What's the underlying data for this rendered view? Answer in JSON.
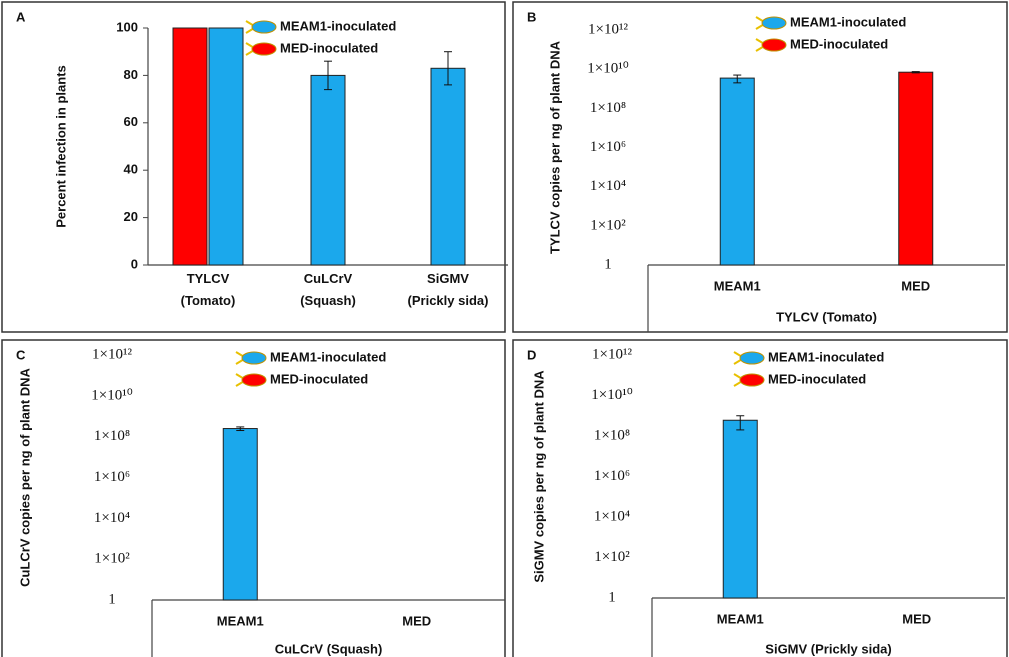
{
  "chart_data": [
    {
      "type": "bar",
      "panel": "A",
      "ylabel": "Percent infection in plants",
      "categories": [
        "TYLCV (Tomato)",
        "CuLCrV (Squash)",
        "SiGMV (Prickly sida)"
      ],
      "series": [
        {
          "name": "MEAM1-inoculated",
          "color": "#1ba8ec",
          "values": [
            100,
            80,
            83
          ],
          "errors": [
            0,
            6,
            7
          ]
        },
        {
          "name": "MED-inoculated",
          "color": "#ff0000",
          "values": [
            100,
            null,
            null
          ],
          "errors": [
            0,
            null,
            null
          ]
        }
      ],
      "ylim": [
        0,
        100
      ],
      "yticks": [
        0,
        20,
        40,
        60,
        80,
        100
      ],
      "log_scale": false,
      "legend": "top"
    },
    {
      "type": "bar",
      "panel": "B",
      "ylabel": "TYLCV copies per ng of plant DNA",
      "xlabel": "TYLCV (Tomato)",
      "categories": [
        "MEAM1",
        "MED"
      ],
      "series": [
        {
          "name": "MEAM1-inoculated",
          "color": "#1ba8ec",
          "values": [
            3500000000,
            null
          ],
          "errors": [
            1500000000,
            null
          ]
        },
        {
          "name": "MED-inoculated",
          "color": "#ff0000",
          "values": [
            null,
            7000000000
          ],
          "errors": [
            null,
            500000000
          ]
        }
      ],
      "ylim": [
        1,
        1000000000000
      ],
      "yticks": [
        1,
        {
          "value": 100,
          "label": "1×10²"
        },
        {
          "value": 10000,
          "label": "1×10⁴"
        },
        {
          "value": 1000000,
          "label": "1×10⁶"
        },
        {
          "value": 100000000,
          "label": "1×10⁸"
        },
        {
          "value": 10000000000,
          "label": "1×10¹⁰"
        },
        {
          "value": 1000000000000,
          "label": "1×10¹²"
        }
      ],
      "log_scale": true,
      "legend": "top"
    },
    {
      "type": "bar",
      "panel": "C",
      "ylabel": "CuLCrV copies per ng of plant DNA",
      "xlabel": "CuLCrV (Squash)",
      "categories": [
        "MEAM1",
        "MED"
      ],
      "series": [
        {
          "name": "MEAM1-inoculated",
          "color": "#1ba8ec",
          "values": [
            250000000,
            null
          ],
          "errors": [
            50000000,
            null
          ]
        },
        {
          "name": "MED-inoculated",
          "color": "#ff0000",
          "values": [
            null,
            null
          ],
          "errors": [
            null,
            null
          ]
        }
      ],
      "ylim": [
        1,
        1000000000000
      ],
      "yticks": [
        1,
        {
          "value": 100,
          "label": "1×10²"
        },
        {
          "value": 10000,
          "label": "1×10⁴"
        },
        {
          "value": 1000000,
          "label": "1×10⁶"
        },
        {
          "value": 100000000,
          "label": "1×10⁸"
        },
        {
          "value": 10000000000,
          "label": "1×10¹⁰"
        },
        {
          "value": 1000000000000,
          "label": "1×10¹²"
        }
      ],
      "log_scale": true,
      "legend": "top"
    },
    {
      "type": "bar",
      "panel": "D",
      "ylabel": "SiGMV copies per ng of plant DNA",
      "xlabel": "SiGMV (Prickly sida)",
      "categories": [
        "MEAM1",
        "MED"
      ],
      "series": [
        {
          "name": "MEAM1-inoculated",
          "color": "#1ba8ec",
          "values": [
            600000000,
            null
          ],
          "errors": [
            400000000,
            null
          ]
        },
        {
          "name": "MED-inoculated",
          "color": "#ff0000",
          "values": [
            null,
            null
          ],
          "errors": [
            null,
            null
          ]
        }
      ],
      "ylim": [
        1,
        1000000000000
      ],
      "yticks": [
        1,
        {
          "value": 100,
          "label": "1×10²"
        },
        {
          "value": 10000,
          "label": "1×10⁴"
        },
        {
          "value": 1000000,
          "label": "1×10⁶"
        },
        {
          "value": 100000000,
          "label": "1×10⁸"
        },
        {
          "value": 10000000000,
          "label": "1×10¹⁰"
        },
        {
          "value": 1000000000000,
          "label": "1×10¹²"
        }
      ],
      "log_scale": true,
      "legend": "top"
    }
  ]
}
